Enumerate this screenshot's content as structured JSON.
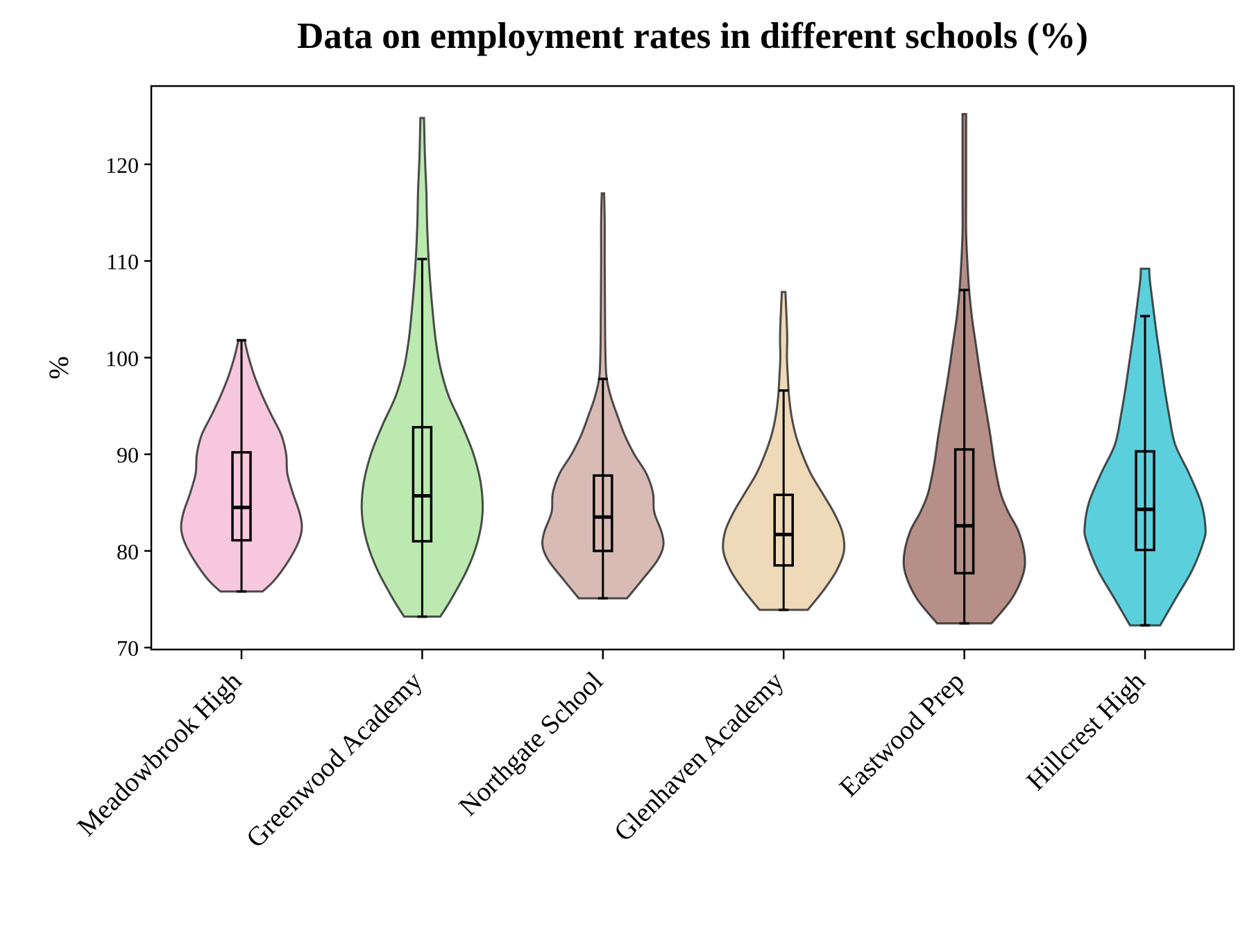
{
  "chart_data": {
    "type": "violin",
    "title": "Data on employment rates in different schools (%)",
    "xlabel": "",
    "ylabel": "%",
    "ylim": [
      70,
      128
    ],
    "yticks": [
      70,
      80,
      90,
      100,
      110,
      120
    ],
    "grid": false,
    "legend": "none",
    "categories": [
      "Meadowbrook High",
      "Greenwood Academy",
      "Northgate School",
      "Glenhaven Academy",
      "Eastwood Prep",
      "Hillcrest High"
    ],
    "series": [
      {
        "category": "Meadowbrook High",
        "color": "#f4b6d2",
        "min": 75.8,
        "q1": 81.1,
        "median": 84.5,
        "q3": 90.2,
        "max": 101.8,
        "whisker_low": 75.8,
        "whisker_high": 101.8,
        "density": [
          [
            75.8,
            0.35
          ],
          [
            77,
            0.55
          ],
          [
            79,
            0.78
          ],
          [
            81,
            0.95
          ],
          [
            82.5,
            1.0
          ],
          [
            84,
            0.96
          ],
          [
            86,
            0.85
          ],
          [
            88,
            0.76
          ],
          [
            90,
            0.74
          ],
          [
            92,
            0.66
          ],
          [
            94,
            0.5
          ],
          [
            96,
            0.35
          ],
          [
            98,
            0.22
          ],
          [
            100,
            0.12
          ],
          [
            101.8,
            0.05
          ]
        ]
      },
      {
        "category": "Greenwood Academy",
        "color": "#a4e296",
        "min": 73.2,
        "q1": 81.0,
        "median": 85.7,
        "q3": 92.8,
        "max": 124.8,
        "whisker_low": 73.2,
        "whisker_high": 110.2,
        "density": [
          [
            73.2,
            0.3
          ],
          [
            75,
            0.48
          ],
          [
            78,
            0.74
          ],
          [
            81,
            0.92
          ],
          [
            84,
            1.0
          ],
          [
            87,
            0.97
          ],
          [
            90,
            0.85
          ],
          [
            93,
            0.66
          ],
          [
            96,
            0.44
          ],
          [
            99,
            0.3
          ],
          [
            102,
            0.22
          ],
          [
            105,
            0.17
          ],
          [
            108,
            0.13
          ],
          [
            111,
            0.1
          ],
          [
            114,
            0.08
          ],
          [
            117,
            0.07
          ],
          [
            120,
            0.05
          ],
          [
            122,
            0.04
          ],
          [
            124.8,
            0.03
          ]
        ]
      },
      {
        "category": "Northgate School",
        "color": "#cca49d",
        "min": 75.1,
        "q1": 80.0,
        "median": 83.5,
        "q3": 87.8,
        "max": 117.0,
        "whisker_low": 75.1,
        "whisker_high": 97.8,
        "density": [
          [
            75.1,
            0.4
          ],
          [
            77,
            0.65
          ],
          [
            79,
            0.9
          ],
          [
            80.5,
            1.0
          ],
          [
            82,
            0.97
          ],
          [
            84,
            0.85
          ],
          [
            86,
            0.83
          ],
          [
            88,
            0.72
          ],
          [
            90,
            0.52
          ],
          [
            92,
            0.36
          ],
          [
            94,
            0.24
          ],
          [
            96,
            0.13
          ],
          [
            98,
            0.06
          ],
          [
            101,
            0.04
          ],
          [
            105,
            0.035
          ],
          [
            110,
            0.03
          ],
          [
            114,
            0.03
          ],
          [
            117,
            0.02
          ]
        ]
      },
      {
        "category": "Glenhaven Academy",
        "color": "#e8cca0",
        "min": 73.9,
        "q1": 78.5,
        "median": 81.7,
        "q3": 85.8,
        "max": 106.8,
        "whisker_low": 73.9,
        "whisker_high": 96.6,
        "density": [
          [
            73.9,
            0.4
          ],
          [
            76,
            0.67
          ],
          [
            78,
            0.88
          ],
          [
            80,
            1.0
          ],
          [
            82,
            0.97
          ],
          [
            84,
            0.83
          ],
          [
            86,
            0.64
          ],
          [
            88,
            0.45
          ],
          [
            90,
            0.31
          ],
          [
            92,
            0.2
          ],
          [
            94,
            0.13
          ],
          [
            96,
            0.09
          ],
          [
            98,
            0.07
          ],
          [
            100,
            0.055
          ],
          [
            102,
            0.06
          ],
          [
            104,
            0.05
          ],
          [
            106.8,
            0.03
          ]
        ]
      },
      {
        "category": "Eastwood Prep",
        "color": "#9c6a60",
        "min": 72.5,
        "q1": 77.7,
        "median": 82.6,
        "q3": 90.5,
        "max": 125.2,
        "whisker_low": 72.5,
        "whisker_high": 107.0,
        "density": [
          [
            72.5,
            0.45
          ],
          [
            75,
            0.78
          ],
          [
            77.5,
            0.97
          ],
          [
            79.5,
            1.0
          ],
          [
            82,
            0.9
          ],
          [
            84,
            0.73
          ],
          [
            86,
            0.6
          ],
          [
            89,
            0.5
          ],
          [
            92,
            0.43
          ],
          [
            95,
            0.35
          ],
          [
            98,
            0.27
          ],
          [
            101,
            0.2
          ],
          [
            104,
            0.13
          ],
          [
            107,
            0.08
          ],
          [
            110,
            0.05
          ],
          [
            113,
            0.03
          ],
          [
            117,
            0.03
          ],
          [
            121,
            0.03
          ],
          [
            125.2,
            0.03
          ]
        ]
      },
      {
        "category": "Hillcrest High",
        "color": "#26bfd2",
        "min": 72.3,
        "q1": 80.1,
        "median": 84.3,
        "q3": 90.3,
        "max": 109.2,
        "whisker_low": 72.3,
        "whisker_high": 104.3,
        "density": [
          [
            72.3,
            0.25
          ],
          [
            75,
            0.5
          ],
          [
            78,
            0.78
          ],
          [
            81,
            0.97
          ],
          [
            82.5,
            1.0
          ],
          [
            85,
            0.93
          ],
          [
            88,
            0.73
          ],
          [
            91,
            0.5
          ],
          [
            94,
            0.4
          ],
          [
            97,
            0.32
          ],
          [
            100,
            0.25
          ],
          [
            103,
            0.18
          ],
          [
            106,
            0.12
          ],
          [
            108,
            0.08
          ],
          [
            109.2,
            0.07
          ]
        ]
      }
    ]
  }
}
